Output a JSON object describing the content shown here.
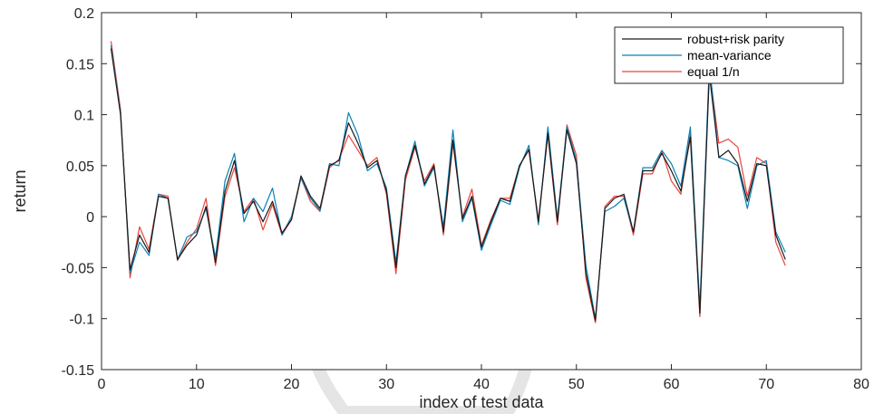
{
  "chart_data": {
    "type": "line",
    "title": "",
    "xlabel": "index of test data",
    "ylabel": "return",
    "xlim": [
      0,
      80
    ],
    "ylim": [
      -0.15,
      0.2
    ],
    "x_ticks": [
      "0",
      "10",
      "20",
      "30",
      "40",
      "50",
      "60",
      "70",
      "80"
    ],
    "y_ticks": [
      "0.2",
      "0.15",
      "0.1",
      "0.05",
      "0",
      "-0.05",
      "-0.1",
      "-0.15"
    ],
    "grid": false,
    "legend_position": "top-right",
    "x": [
      1,
      2,
      3,
      4,
      5,
      6,
      7,
      8,
      9,
      10,
      11,
      12,
      13,
      14,
      15,
      16,
      17,
      18,
      19,
      20,
      21,
      22,
      23,
      24,
      25,
      26,
      27,
      28,
      29,
      30,
      31,
      32,
      33,
      34,
      35,
      36,
      37,
      38,
      39,
      40,
      41,
      42,
      43,
      44,
      45,
      46,
      47,
      48,
      49,
      50,
      51,
      52,
      53,
      54,
      55,
      56,
      57,
      58,
      59,
      60,
      61,
      62,
      63,
      64,
      65,
      66,
      67,
      68,
      69,
      70,
      71,
      72
    ],
    "series": [
      {
        "name": "robust+risk parity",
        "color": "#1a1a1a",
        "values": [
          0.165,
          0.1,
          -0.052,
          -0.018,
          -0.035,
          0.02,
          0.018,
          -0.042,
          -0.028,
          -0.018,
          0.01,
          -0.045,
          0.025,
          0.055,
          0.003,
          0.015,
          -0.005,
          0.015,
          -0.016,
          -0.003,
          0.04,
          0.02,
          0.008,
          0.05,
          0.055,
          0.092,
          0.072,
          0.048,
          0.055,
          0.025,
          -0.05,
          0.04,
          0.07,
          0.032,
          0.05,
          -0.015,
          0.075,
          -0.002,
          0.02,
          -0.03,
          -0.005,
          0.018,
          0.015,
          0.05,
          0.066,
          -0.005,
          0.082,
          -0.005,
          0.085,
          0.052,
          -0.055,
          -0.102,
          0.008,
          0.018,
          0.022,
          -0.015,
          0.045,
          0.045,
          0.062,
          0.045,
          0.025,
          0.078,
          -0.095,
          0.14,
          0.058,
          0.065,
          0.052,
          0.015,
          0.052,
          0.05,
          -0.018,
          -0.042
        ]
      },
      {
        "name": "mean-variance",
        "color": "#0a82b8",
        "values": [
          0.168,
          0.102,
          -0.055,
          -0.025,
          -0.038,
          0.022,
          0.018,
          -0.042,
          -0.02,
          -0.015,
          0.008,
          -0.04,
          0.035,
          0.062,
          -0.005,
          0.018,
          0.005,
          0.028,
          -0.018,
          0.0,
          0.038,
          0.018,
          0.006,
          0.052,
          0.05,
          0.102,
          0.08,
          0.045,
          0.052,
          0.028,
          -0.045,
          0.04,
          0.074,
          0.03,
          0.048,
          -0.01,
          0.085,
          -0.005,
          0.018,
          -0.033,
          -0.008,
          0.016,
          0.012,
          0.048,
          0.07,
          -0.008,
          0.088,
          -0.002,
          0.088,
          0.055,
          -0.048,
          -0.1,
          0.005,
          0.01,
          0.018,
          -0.015,
          0.048,
          0.048,
          0.065,
          0.052,
          0.03,
          0.088,
          -0.09,
          0.15,
          0.058,
          0.055,
          0.05,
          0.008,
          0.05,
          0.055,
          -0.015,
          -0.035
        ]
      },
      {
        "name": "equal 1/n",
        "color": "#e8453c",
        "values": [
          0.172,
          0.105,
          -0.06,
          -0.01,
          -0.032,
          0.022,
          0.02,
          -0.043,
          -0.025,
          -0.012,
          0.018,
          -0.048,
          0.02,
          0.048,
          0.005,
          0.018,
          -0.013,
          0.012,
          -0.018,
          -0.003,
          0.038,
          0.015,
          0.005,
          0.048,
          0.056,
          0.08,
          0.065,
          0.05,
          0.058,
          0.022,
          -0.056,
          0.036,
          0.068,
          0.035,
          0.052,
          -0.018,
          0.072,
          0.0,
          0.027,
          -0.028,
          -0.003,
          0.018,
          0.018,
          0.05,
          0.065,
          -0.003,
          0.08,
          -0.008,
          0.09,
          0.06,
          -0.06,
          -0.104,
          0.01,
          0.02,
          0.02,
          -0.018,
          0.042,
          0.042,
          0.064,
          0.035,
          0.022,
          0.082,
          -0.098,
          0.145,
          0.072,
          0.076,
          0.068,
          0.02,
          0.058,
          0.052,
          -0.025,
          -0.048
        ]
      }
    ]
  }
}
